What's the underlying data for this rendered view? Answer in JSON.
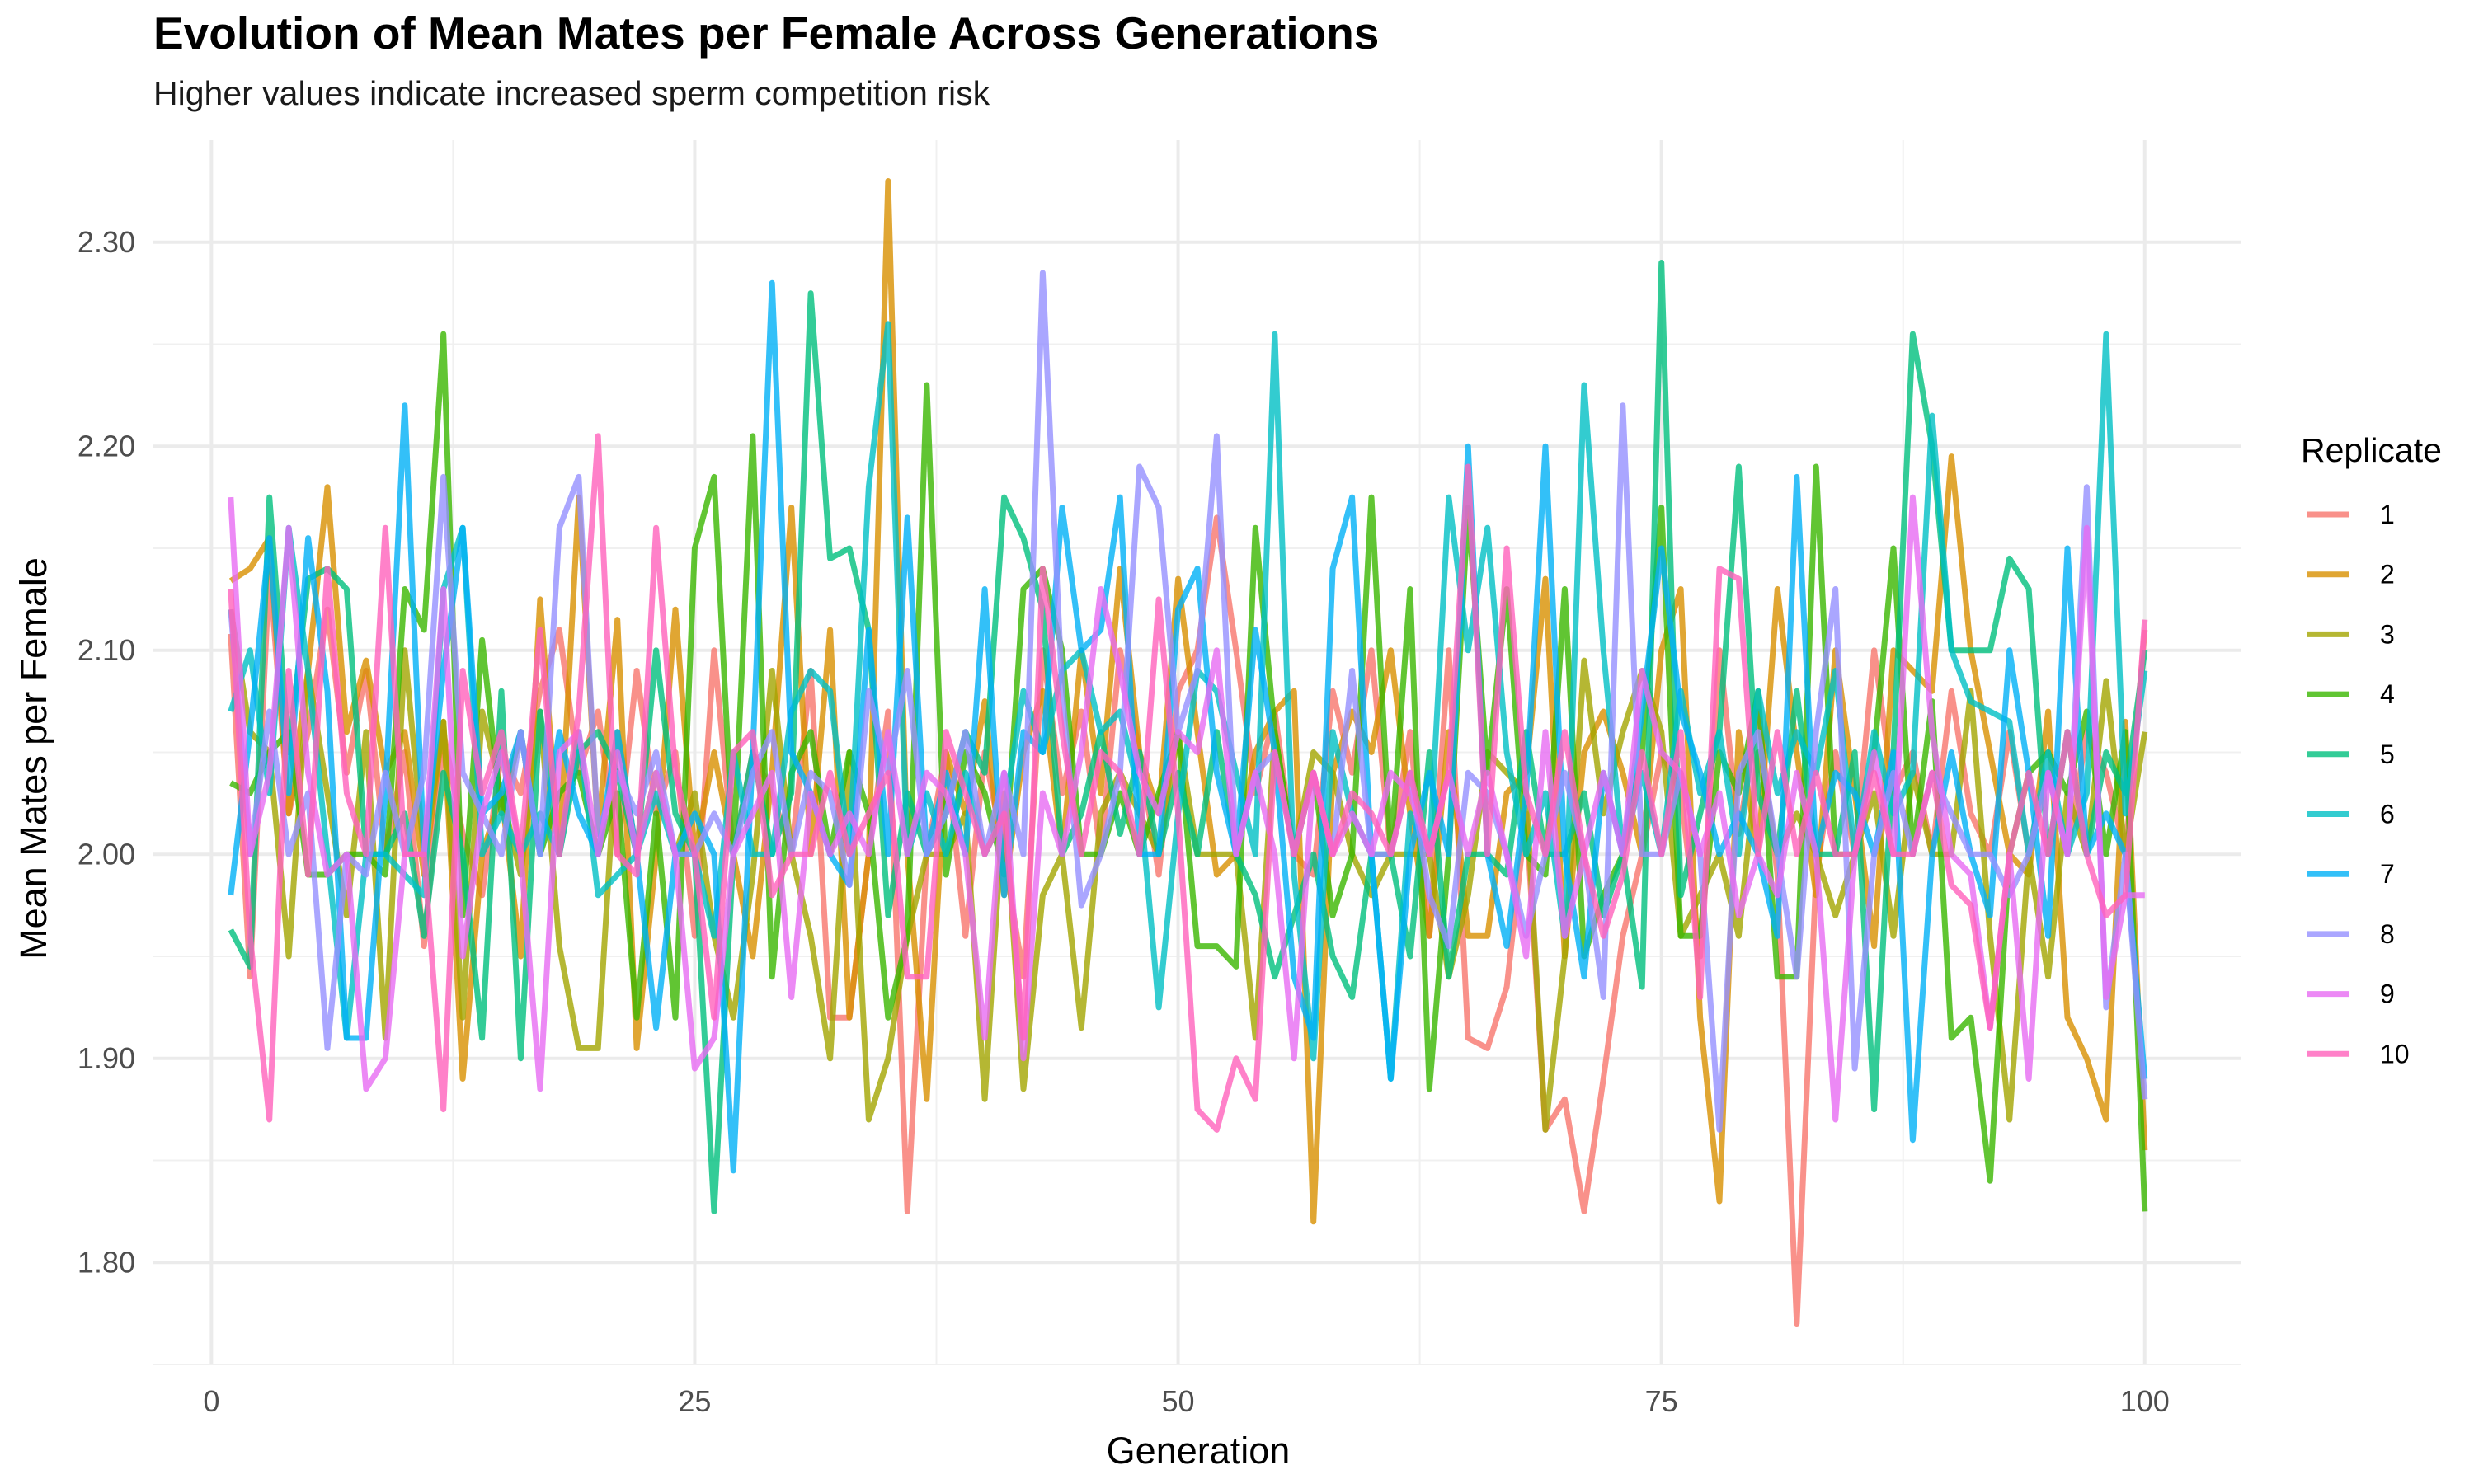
{
  "chart_data": {
    "type": "line",
    "title": "Evolution of Mean Mates per Female Across Generations",
    "subtitle": "Higher values indicate increased sperm competition risk",
    "xlabel": "Generation",
    "ylabel": "Mean Mates per Female",
    "xlim": [
      -3,
      105
    ],
    "ylim": [
      1.75,
      2.35
    ],
    "x_ticks": [
      0,
      25,
      50,
      75,
      100
    ],
    "y_ticks": [
      1.8,
      1.9,
      2.0,
      2.1,
      2.2,
      2.3
    ],
    "x_tick_labels": [
      "0",
      "25",
      "50",
      "75",
      "100"
    ],
    "y_tick_labels": [
      "1.80",
      "1.90",
      "2.00",
      "2.10",
      "2.20",
      "2.30"
    ],
    "grid": true,
    "legend": {
      "title": "Replicate",
      "position": "right"
    },
    "x_start": 1,
    "series": [
      {
        "name": "1",
        "color": "#F8766D",
        "values": [
          2.108,
          1.94,
          2.14,
          2.02,
          2.06,
          2.12,
          2.04,
          2.09,
          2.0,
          2.05,
          1.955,
          2.06,
          2.01,
          1.98,
          2.05,
          2.03,
          2.08,
          2.11,
          2.04,
          2.07,
          2.0,
          2.09,
          2.02,
          2.05,
          1.96,
          2.1,
          2.0,
          2.05,
          2.03,
          2.0,
          2.09,
          1.92,
          1.92,
          2.0,
          2.07,
          1.825,
          2.0,
          2.05,
          1.96,
          2.05,
          2.0,
          1.94,
          2.1,
          2.03,
          2.07,
          2.0,
          2.1,
          2.05,
          1.99,
          2.08,
          2.1,
          2.165,
          2.1,
          2.03,
          2.07,
          2.0,
          1.99,
          2.08,
          2.04,
          2.1,
          2.0,
          2.06,
          1.96,
          2.1,
          1.91,
          1.905,
          1.935,
          2.02,
          1.865,
          1.88,
          1.825,
          1.89,
          1.96,
          2.0,
          2.05,
          2.03,
          1.95,
          2.1,
          2.01,
          2.07,
          1.99,
          1.77,
          1.99,
          2.05,
          2.0,
          2.1,
          2.03,
          2.05,
          2.0,
          2.08,
          2.02,
          2.0,
          2.06,
          2.0,
          2.04,
          2.0,
          2.06,
          2.04,
          2.0,
          2.11
        ]
      },
      {
        "name": "2",
        "color": "#D89000",
        "values": [
          2.134,
          2.14,
          2.155,
          2.02,
          2.09,
          2.18,
          2.06,
          2.095,
          2.04,
          2.06,
          1.99,
          2.065,
          1.89,
          2.0,
          2.03,
          1.95,
          2.125,
          2.0,
          2.175,
          2.01,
          2.115,
          1.905,
          2.0,
          2.12,
          2.0,
          2.05,
          2.0,
          1.95,
          2.04,
          2.17,
          2.0,
          2.11,
          1.92,
          2.0,
          2.33,
          2.0,
          1.88,
          2.05,
          2.02,
          2.075,
          1.98,
          2.05,
          2.08,
          2.0,
          2.1,
          2.03,
          2.14,
          2.05,
          2.02,
          2.135,
          2.06,
          1.99,
          2.0,
          2.05,
          2.07,
          2.08,
          1.82,
          2.04,
          2.07,
          2.05,
          2.1,
          2.02,
          1.96,
          2.06,
          1.96,
          1.96,
          2.03,
          2.04,
          2.135,
          1.95,
          2.05,
          2.07,
          2.04,
          2.0,
          2.1,
          2.13,
          1.92,
          1.83,
          2.06,
          2.0,
          2.13,
          2.05,
          1.98,
          2.1,
          2.03,
          1.955,
          2.1,
          2.09,
          2.08,
          2.195,
          2.1,
          2.05,
          2.0,
          1.99,
          2.07,
          1.92,
          1.9,
          1.87,
          2.065,
          1.855
        ]
      },
      {
        "name": "3",
        "color": "#A3A500",
        "values": [
          2.12,
          2.06,
          2.05,
          1.95,
          2.09,
          2.03,
          1.97,
          2.06,
          1.91,
          2.1,
          2.0,
          2.065,
          1.92,
          2.07,
          2.03,
          1.99,
          2.07,
          1.955,
          1.905,
          1.905,
          2.06,
          2.0,
          2.04,
          2.0,
          2.03,
          1.96,
          1.92,
          1.99,
          2.09,
          2.0,
          1.96,
          1.9,
          2.05,
          1.87,
          1.9,
          1.96,
          2.0,
          2.0,
          2.02,
          1.88,
          2.03,
          1.885,
          1.98,
          2.0,
          1.915,
          2.02,
          2.04,
          2.02,
          2.0,
          2.06,
          2.0,
          2.0,
          2.0,
          1.91,
          2.06,
          2.0,
          2.05,
          2.04,
          2.0,
          1.98,
          2.0,
          2.0,
          2.0,
          1.94,
          1.98,
          2.05,
          2.04,
          2.03,
          1.865,
          1.95,
          2.095,
          2.02,
          2.06,
          2.09,
          2.06,
          1.96,
          1.98,
          2.0,
          1.96,
          2.05,
          2.0,
          2.02,
          2.0,
          1.97,
          2.0,
          2.03,
          1.96,
          2.04,
          2.0,
          2.0,
          2.08,
          1.96,
          1.87,
          2.0,
          1.94,
          2.03,
          2.0,
          2.085,
          2.0,
          2.06
        ]
      },
      {
        "name": "4",
        "color": "#39B600",
        "values": [
          2.035,
          2.03,
          2.05,
          2.06,
          1.99,
          1.99,
          2.0,
          2.0,
          1.99,
          2.13,
          2.11,
          2.255,
          1.97,
          2.105,
          2.02,
          2.06,
          2.0,
          2.03,
          2.04,
          2.0,
          2.03,
          1.92,
          2.02,
          1.92,
          2.15,
          2.185,
          2.0,
          2.205,
          1.94,
          2.04,
          2.06,
          2.0,
          2.05,
          2.02,
          1.92,
          1.96,
          2.23,
          1.99,
          2.05,
          2.03,
          1.99,
          2.13,
          2.14,
          2.1,
          2.0,
          2.0,
          2.03,
          2.0,
          2.03,
          2.06,
          1.955,
          1.955,
          1.945,
          2.16,
          2.06,
          2.0,
          2.04,
          1.97,
          2.0,
          2.175,
          2.0,
          2.13,
          1.885,
          2.0,
          2.17,
          2.04,
          2.13,
          2.0,
          1.99,
          2.13,
          1.95,
          1.98,
          2.0,
          2.05,
          2.17,
          1.96,
          1.96,
          2.05,
          2.03,
          2.08,
          1.94,
          1.94,
          2.19,
          2.0,
          2.0,
          2.05,
          2.15,
          2.0,
          2.075,
          1.91,
          1.92,
          1.84,
          2.0,
          2.04,
          2.05,
          2.03,
          2.07,
          2.0,
          2.06,
          1.825
        ]
      },
      {
        "name": "5",
        "color": "#00BF7D",
        "values": [
          1.963,
          1.945,
          2.175,
          2.05,
          2.135,
          2.14,
          2.13,
          2.0,
          2.0,
          2.02,
          1.96,
          2.04,
          2.0,
          1.91,
          2.08,
          1.9,
          2.07,
          2.0,
          2.05,
          2.06,
          2.04,
          2.0,
          2.1,
          2.02,
          2.0,
          1.825,
          2.0,
          2.05,
          2.0,
          2.03,
          2.275,
          2.145,
          2.15,
          2.11,
          1.97,
          2.03,
          2.0,
          2.02,
          2.06,
          2.04,
          2.175,
          2.155,
          2.12,
          2.0,
          2.02,
          2.06,
          2.01,
          2.05,
          2.0,
          2.04,
          2.0,
          2.06,
          2.0,
          1.98,
          1.94,
          1.97,
          2.0,
          1.95,
          1.93,
          2.0,
          2.0,
          1.95,
          2.05,
          1.94,
          2.0,
          2.0,
          1.99,
          2.06,
          2.0,
          2.0,
          2.03,
          1.97,
          2.0,
          1.935,
          2.29,
          1.98,
          2.02,
          2.06,
          2.19,
          2.03,
          2.0,
          2.08,
          2.0,
          2.0,
          2.05,
          1.875,
          2.05,
          2.255,
          2.2,
          2.1,
          2.1,
          2.1,
          2.145,
          2.13,
          2.0,
          2.06,
          2.0,
          2.05,
          2.03,
          2.1
        ]
      },
      {
        "name": "6",
        "color": "#00BFC4",
        "values": [
          2.07,
          2.1,
          2.03,
          2.16,
          2.09,
          2.0,
          1.91,
          2.0,
          2.0,
          1.99,
          1.98,
          2.13,
          2.16,
          2.0,
          2.02,
          2.0,
          2.02,
          2.0,
          2.06,
          1.98,
          1.99,
          2.0,
          2.03,
          2.0,
          2.0,
          1.96,
          2.05,
          2.0,
          2.0,
          2.07,
          2.09,
          2.08,
          2.0,
          2.18,
          2.26,
          2.0,
          2.03,
          2.0,
          2.04,
          2.0,
          2.02,
          2.08,
          2.05,
          2.09,
          2.1,
          2.06,
          2.07,
          2.03,
          1.925,
          2.02,
          2.09,
          2.08,
          2.04,
          2.0,
          2.255,
          1.99,
          1.9,
          2.06,
          2.02,
          2.0,
          1.89,
          2.02,
          2.0,
          2.175,
          2.1,
          2.16,
          2.05,
          2.0,
          2.03,
          1.96,
          2.23,
          2.1,
          2.0,
          2.04,
          2.0,
          2.08,
          2.03,
          2.06,
          2.0,
          2.08,
          2.03,
          2.06,
          2.04,
          2.09,
          2.0,
          2.06,
          2.02,
          2.04,
          2.215,
          2.1,
          2.075,
          2.07,
          2.065,
          2.0,
          2.05,
          2.0,
          2.03,
          2.255,
          2.02,
          2.09
        ]
      },
      {
        "name": "7",
        "color": "#00B0F6",
        "values": [
          1.98,
          2.06,
          2.155,
          2.03,
          2.155,
          2.08,
          1.91,
          1.91,
          2.03,
          2.22,
          2.0,
          2.09,
          2.16,
          2.02,
          2.03,
          2.06,
          2.0,
          2.06,
          2.02,
          2.0,
          2.06,
          2.0,
          1.915,
          2.0,
          2.02,
          2.0,
          1.845,
          2.05,
          2.28,
          2.05,
          2.03,
          2.0,
          1.985,
          2.11,
          2.0,
          2.165,
          2.0,
          2.04,
          2.0,
          2.13,
          1.98,
          2.06,
          2.05,
          2.17,
          2.1,
          2.11,
          2.175,
          2.0,
          2.0,
          2.12,
          2.14,
          2.04,
          2.0,
          2.11,
          2.05,
          1.94,
          1.91,
          2.14,
          2.175,
          2.0,
          1.89,
          2.0,
          2.04,
          2.0,
          2.2,
          2.0,
          1.955,
          2.03,
          2.2,
          2.0,
          1.94,
          2.04,
          2.0,
          2.07,
          2.15,
          2.07,
          2.04,
          2.0,
          2.02,
          2.0,
          1.96,
          2.185,
          2.0,
          2.04,
          2.03,
          2.0,
          2.05,
          1.86,
          2.0,
          2.05,
          2.0,
          1.97,
          2.1,
          2.04,
          1.96,
          2.15,
          2.0,
          2.02,
          2.0,
          1.89
        ]
      },
      {
        "name": "8",
        "color": "#9590FF",
        "values": [
          2.12,
          2.0,
          2.07,
          2.0,
          2.03,
          1.905,
          2.0,
          1.99,
          2.04,
          2.0,
          2.04,
          2.185,
          2.04,
          2.02,
          2.0,
          2.06,
          2.0,
          2.16,
          2.185,
          2.01,
          2.04,
          2.02,
          2.05,
          2.0,
          2.0,
          2.02,
          2.0,
          2.04,
          2.06,
          2.0,
          2.04,
          2.03,
          1.985,
          2.08,
          2.04,
          2.09,
          2.0,
          2.02,
          2.06,
          2.0,
          2.04,
          2.0,
          2.285,
          2.08,
          1.975,
          2.0,
          2.04,
          2.19,
          2.17,
          2.06,
          2.09,
          2.205,
          2.0,
          2.04,
          2.05,
          2.0,
          2.04,
          2.0,
          2.09,
          2.0,
          2.0,
          2.04,
          1.98,
          1.955,
          2.04,
          2.03,
          2.0,
          1.96,
          2.0,
          2.04,
          2.0,
          1.93,
          2.22,
          2.0,
          2.0,
          2.04,
          2.0,
          1.865,
          2.04,
          2.06,
          2.0,
          1.94,
          2.06,
          2.13,
          1.895,
          2.0,
          2.04,
          2.0,
          2.04,
          2.02,
          2.0,
          2.0,
          1.98,
          2.0,
          2.04,
          2.0,
          2.18,
          1.925,
          2.0,
          1.88
        ]
      },
      {
        "name": "9",
        "color": "#E76BF3",
        "values": [
          2.175,
          2.0,
          2.04,
          2.16,
          2.04,
          1.99,
          2.0,
          1.885,
          1.9,
          2.0,
          2.0,
          2.13,
          1.95,
          2.02,
          2.05,
          2.0,
          1.885,
          2.05,
          2.06,
          2.0,
          2.05,
          2.0,
          2.04,
          2.0,
          1.895,
          1.91,
          2.0,
          2.02,
          2.04,
          1.93,
          2.03,
          2.0,
          2.02,
          2.0,
          2.06,
          2.0,
          2.04,
          2.03,
          2.0,
          1.91,
          2.04,
          1.9,
          2.03,
          2.0,
          2.05,
          2.13,
          2.09,
          2.04,
          2.02,
          2.06,
          2.05,
          2.1,
          2.0,
          2.04,
          2.0,
          1.9,
          2.04,
          2.0,
          2.02,
          2.0,
          2.04,
          2.03,
          2.0,
          2.04,
          2.0,
          2.04,
          2.0,
          1.95,
          2.06,
          1.96,
          2.0,
          2.04,
          2.0,
          2.09,
          2.05,
          2.04,
          2.0,
          2.03,
          1.97,
          2.0,
          1.98,
          2.04,
          2.0,
          1.87,
          2.0,
          2.05,
          2.0,
          2.175,
          2.06,
          2.0,
          1.99,
          1.915,
          2.0,
          1.89,
          2.04,
          2.0,
          2.16,
          1.93,
          1.98,
          1.98
        ]
      },
      {
        "name": "10",
        "color": "#FF62BC",
        "values": [
          2.13,
          1.96,
          1.87,
          2.09,
          1.99,
          2.14,
          2.03,
          2.0,
          2.16,
          2.0,
          2.0,
          1.875,
          2.09,
          2.03,
          2.06,
          2.0,
          2.11,
          2.0,
          2.07,
          2.205,
          2.0,
          1.99,
          2.16,
          2.04,
          2.0,
          1.92,
          2.05,
          2.06,
          1.98,
          2.0,
          2.0,
          2.04,
          2.0,
          2.02,
          2.04,
          1.94,
          1.94,
          2.06,
          2.03,
          2.0,
          2.02,
          1.91,
          2.14,
          2.06,
          2.0,
          2.05,
          2.04,
          2.0,
          2.125,
          2.02,
          1.875,
          1.865,
          1.9,
          1.88,
          2.05,
          2.0,
          2.04,
          2.0,
          2.03,
          2.02,
          2.0,
          2.04,
          2.0,
          2.04,
          2.19,
          2.0,
          2.15,
          2.03,
          2.0,
          2.06,
          2.0,
          1.96,
          1.99,
          2.05,
          2.0,
          2.06,
          1.93,
          2.14,
          2.135,
          2.0,
          2.06,
          2.0,
          2.04,
          2.0,
          2.0,
          2.04,
          2.0,
          2.0,
          2.04,
          1.985,
          1.975,
          1.915,
          2.0,
          2.04,
          2.0,
          2.06,
          2.0,
          1.97,
          1.98,
          2.115
        ]
      }
    ]
  }
}
